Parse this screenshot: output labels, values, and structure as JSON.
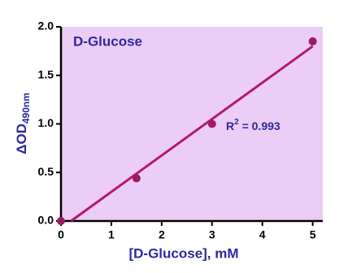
{
  "chart_data": {
    "type": "scatter",
    "title": "D-Glucose",
    "x_label": "[D-Glucose], mM",
    "y_label": {
      "main": "ΔOD",
      "sub": "490nm"
    },
    "annotation": {
      "base": "R",
      "sup": "2",
      "rest": " = 0.993"
    },
    "x": [
      0,
      1.5,
      3,
      5
    ],
    "values": [
      0,
      0.44,
      1.0,
      1.85
    ],
    "color": "#9b1d5c",
    "fit": {
      "x": [
        0.2,
        5
      ],
      "values": [
        0,
        1.8
      ],
      "color": "#b5176b"
    },
    "background": "#ebcdf5",
    "text_color": "#2b2a9c",
    "xlim": [
      0,
      5.2
    ],
    "xticks": [
      0,
      1,
      2,
      3,
      4,
      5
    ],
    "ylim": [
      0,
      2.0
    ],
    "yticks": [
      {
        "value": 0,
        "label": "0.0"
      },
      {
        "value": 0.5,
        "label": "0.5"
      },
      {
        "value": 1.0,
        "label": "1.0"
      },
      {
        "value": 1.5,
        "label": "1.5"
      },
      {
        "value": 2.0,
        "label": "2.0"
      }
    ]
  }
}
